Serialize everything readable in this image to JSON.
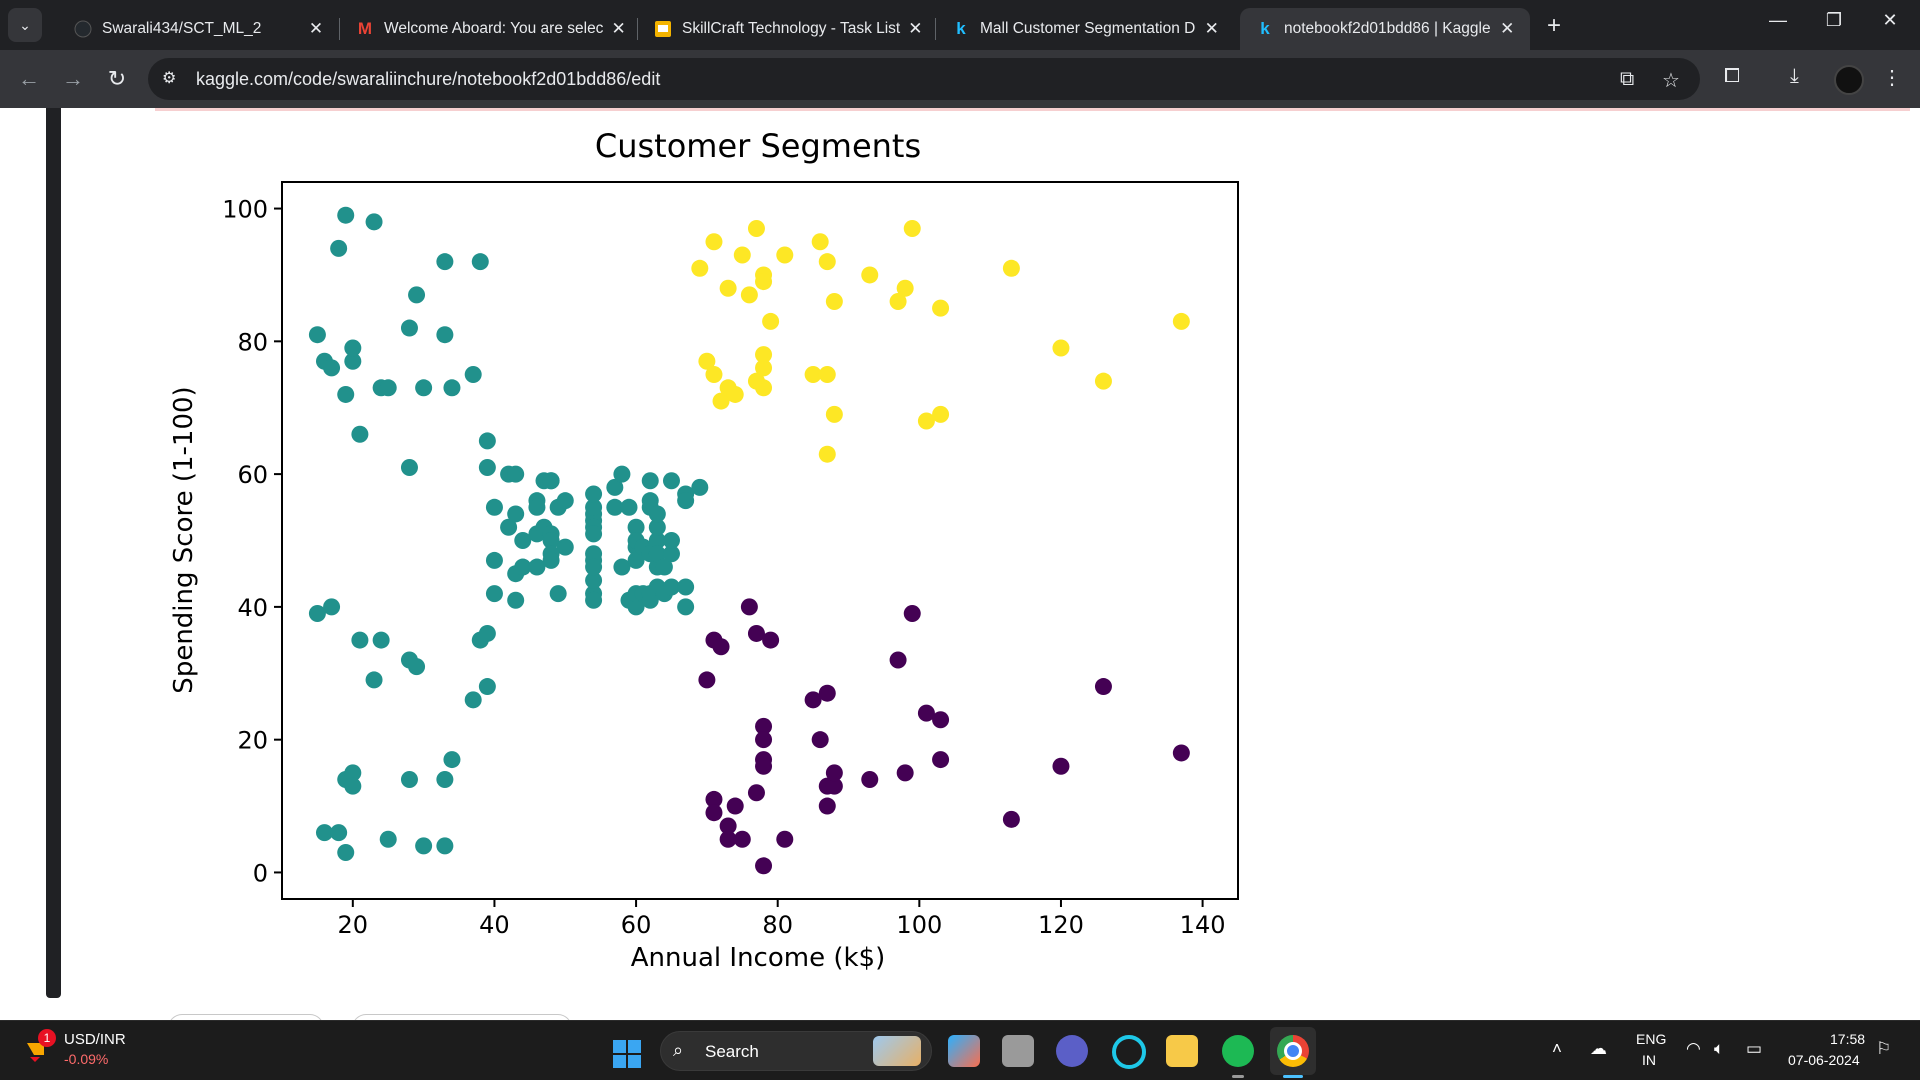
{
  "browser": {
    "tabs": [
      {
        "title": "Swarali434/SCT_ML_2",
        "favicon": "github-icon",
        "active": false
      },
      {
        "title": "Welcome Aboard: You are selec",
        "favicon": "gmail-icon",
        "active": false
      },
      {
        "title": "SkillCraft Technology - Task List",
        "favicon": "google-slides-icon",
        "active": false
      },
      {
        "title": "Mall Customer Segmentation D",
        "favicon": "kaggle-icon",
        "active": false
      },
      {
        "title": "notebookf2d01bdd86 | Kaggle",
        "favicon": "kaggle-icon",
        "active": true
      }
    ],
    "url": "kaggle.com/code/swaraliinchure/notebookf2d01bdd86/edit"
  },
  "chart_data": {
    "type": "scatter",
    "title": "Customer Segments",
    "xlabel": "Annual Income (k$)",
    "ylabel": "Spending Score (1-100)",
    "xlim": [
      10,
      145
    ],
    "ylim": [
      -4,
      104
    ],
    "xticks": [
      20,
      40,
      60,
      80,
      100,
      120,
      140
    ],
    "yticks": [
      0,
      20,
      40,
      60,
      80,
      100
    ],
    "grid": false,
    "series": [
      {
        "color": "#21918c",
        "points": [
          [
            15,
            39
          ],
          [
            15,
            81
          ],
          [
            16,
            6
          ],
          [
            16,
            77
          ],
          [
            17,
            40
          ],
          [
            17,
            76
          ],
          [
            18,
            6
          ],
          [
            18,
            94
          ],
          [
            19,
            3
          ],
          [
            19,
            72
          ],
          [
            19,
            14
          ],
          [
            19,
            99
          ],
          [
            20,
            15
          ],
          [
            20,
            77
          ],
          [
            20,
            13
          ],
          [
            20,
            79
          ],
          [
            21,
            35
          ],
          [
            21,
            66
          ],
          [
            23,
            29
          ],
          [
            23,
            98
          ],
          [
            24,
            35
          ],
          [
            24,
            73
          ],
          [
            25,
            5
          ],
          [
            25,
            73
          ],
          [
            28,
            14
          ],
          [
            28,
            82
          ],
          [
            28,
            32
          ],
          [
            28,
            61
          ],
          [
            29,
            31
          ],
          [
            29,
            87
          ],
          [
            30,
            4
          ],
          [
            30,
            73
          ],
          [
            33,
            4
          ],
          [
            33,
            92
          ],
          [
            33,
            14
          ],
          [
            33,
            81
          ],
          [
            34,
            17
          ],
          [
            34,
            73
          ],
          [
            37,
            26
          ],
          [
            37,
            75
          ],
          [
            38,
            35
          ],
          [
            38,
            92
          ],
          [
            39,
            36
          ],
          [
            39,
            61
          ],
          [
            39,
            28
          ],
          [
            39,
            65
          ],
          [
            40,
            55
          ],
          [
            40,
            47
          ],
          [
            40,
            42
          ],
          [
            42,
            52
          ],
          [
            42,
            60
          ],
          [
            43,
            54
          ],
          [
            43,
            60
          ],
          [
            43,
            45
          ],
          [
            43,
            41
          ],
          [
            44,
            50
          ],
          [
            44,
            46
          ],
          [
            46,
            51
          ],
          [
            46,
            46
          ],
          [
            46,
            56
          ],
          [
            46,
            55
          ],
          [
            47,
            52
          ],
          [
            47,
            59
          ],
          [
            48,
            51
          ],
          [
            48,
            59
          ],
          [
            48,
            50
          ],
          [
            48,
            48
          ],
          [
            48,
            59
          ],
          [
            48,
            47
          ],
          [
            49,
            55
          ],
          [
            49,
            42
          ],
          [
            50,
            49
          ],
          [
            50,
            56
          ],
          [
            54,
            47
          ],
          [
            54,
            54
          ],
          [
            54,
            53
          ],
          [
            54,
            48
          ],
          [
            54,
            52
          ],
          [
            54,
            42
          ],
          [
            54,
            51
          ],
          [
            54,
            55
          ],
          [
            54,
            41
          ],
          [
            54,
            44
          ],
          [
            54,
            57
          ],
          [
            54,
            46
          ],
          [
            57,
            58
          ],
          [
            57,
            55
          ],
          [
            58,
            60
          ],
          [
            58,
            46
          ],
          [
            59,
            55
          ],
          [
            59,
            41
          ],
          [
            60,
            49
          ],
          [
            60,
            40
          ],
          [
            60,
            42
          ],
          [
            60,
            52
          ],
          [
            60,
            47
          ],
          [
            60,
            50
          ],
          [
            61,
            42
          ],
          [
            61,
            49
          ],
          [
            62,
            41
          ],
          [
            62,
            48
          ],
          [
            62,
            59
          ],
          [
            62,
            55
          ],
          [
            62,
            56
          ],
          [
            62,
            42
          ],
          [
            63,
            50
          ],
          [
            63,
            46
          ],
          [
            63,
            43
          ],
          [
            63,
            48
          ],
          [
            63,
            52
          ],
          [
            63,
            54
          ],
          [
            64,
            42
          ],
          [
            64,
            46
          ],
          [
            65,
            48
          ],
          [
            65,
            50
          ],
          [
            65,
            43
          ],
          [
            65,
            59
          ],
          [
            67,
            43
          ],
          [
            67,
            57
          ],
          [
            67,
            56
          ],
          [
            67,
            40
          ],
          [
            69,
            58
          ]
        ]
      },
      {
        "color": "#fde725",
        "points": [
          [
            69,
            91
          ],
          [
            70,
            77
          ],
          [
            71,
            95
          ],
          [
            71,
            75
          ],
          [
            72,
            71
          ],
          [
            73,
            88
          ],
          [
            73,
            73
          ],
          [
            74,
            72
          ],
          [
            75,
            93
          ],
          [
            76,
            87
          ],
          [
            77,
            97
          ],
          [
            77,
            74
          ],
          [
            78,
            90
          ],
          [
            78,
            76
          ],
          [
            78,
            89
          ],
          [
            78,
            78
          ],
          [
            78,
            73
          ],
          [
            79,
            83
          ],
          [
            81,
            93
          ],
          [
            85,
            75
          ],
          [
            86,
            95
          ],
          [
            87,
            63
          ],
          [
            87,
            75
          ],
          [
            87,
            92
          ],
          [
            88,
            86
          ],
          [
            88,
            69
          ],
          [
            93,
            90
          ],
          [
            97,
            86
          ],
          [
            98,
            88
          ],
          [
            99,
            97
          ],
          [
            101,
            68
          ],
          [
            103,
            85
          ],
          [
            103,
            69
          ],
          [
            113,
            91
          ],
          [
            120,
            79
          ],
          [
            126,
            74
          ],
          [
            137,
            83
          ]
        ]
      },
      {
        "color": "#440154",
        "points": [
          [
            70,
            29
          ],
          [
            71,
            11
          ],
          [
            71,
            9
          ],
          [
            71,
            35
          ],
          [
            72,
            34
          ],
          [
            73,
            5
          ],
          [
            73,
            7
          ],
          [
            74,
            10
          ],
          [
            75,
            5
          ],
          [
            76,
            40
          ],
          [
            77,
            12
          ],
          [
            77,
            36
          ],
          [
            78,
            22
          ],
          [
            78,
            17
          ],
          [
            78,
            20
          ],
          [
            78,
            16
          ],
          [
            78,
            1
          ],
          [
            79,
            35
          ],
          [
            81,
            5
          ],
          [
            85,
            26
          ],
          [
            86,
            20
          ],
          [
            87,
            27
          ],
          [
            87,
            13
          ],
          [
            87,
            10
          ],
          [
            88,
            13
          ],
          [
            88,
            15
          ],
          [
            93,
            14
          ],
          [
            97,
            32
          ],
          [
            98,
            15
          ],
          [
            99,
            39
          ],
          [
            101,
            24
          ],
          [
            103,
            17
          ],
          [
            103,
            23
          ],
          [
            113,
            8
          ],
          [
            120,
            16
          ],
          [
            126,
            28
          ],
          [
            137,
            18
          ]
        ]
      }
    ]
  },
  "taskbar": {
    "ticker_name": "USD/INR",
    "ticker_change": "-0.09%",
    "ticker_badge": "1",
    "search_label": "Search",
    "lang_line1": "ENG",
    "lang_line2": "IN",
    "time": "17:58",
    "date": "07-06-2024"
  },
  "colors": {
    "chrome_dark": "#202124",
    "chrome_toolbar": "#35363a",
    "taskbar": "#1c1c1c"
  }
}
